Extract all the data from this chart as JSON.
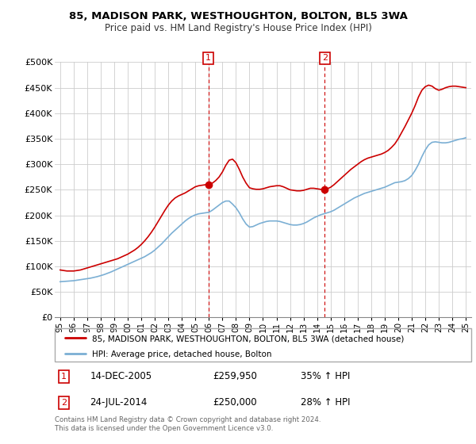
{
  "title": "85, MADISON PARK, WESTHOUGHTON, BOLTON, BL5 3WA",
  "subtitle": "Price paid vs. HM Land Registry's House Price Index (HPI)",
  "legend_line1": "85, MADISON PARK, WESTHOUGHTON, BOLTON, BL5 3WA (detached house)",
  "legend_line2": "HPI: Average price, detached house, Bolton",
  "annotation1_label": "1",
  "annotation1_date": "14-DEC-2005",
  "annotation1_price": "£259,950",
  "annotation1_hpi": "35% ↑ HPI",
  "annotation2_label": "2",
  "annotation2_date": "24-JUL-2014",
  "annotation2_price": "£250,000",
  "annotation2_hpi": "28% ↑ HPI",
  "footer": "Contains HM Land Registry data © Crown copyright and database right 2024.\nThis data is licensed under the Open Government Licence v3.0.",
  "red_color": "#cc0000",
  "blue_color": "#7bafd4",
  "marker1_x": 2005.96,
  "marker1_y": 259950,
  "marker2_x": 2014.56,
  "marker2_y": 250000,
  "ylim_min": 0,
  "ylim_max": 500000,
  "xlim_min": 1994.6,
  "xlim_max": 2025.4,
  "yticks": [
    0,
    50000,
    100000,
    150000,
    200000,
    250000,
    300000,
    350000,
    400000,
    450000,
    500000
  ],
  "ytick_labels": [
    "£0",
    "£50K",
    "£100K",
    "£150K",
    "£200K",
    "£250K",
    "£300K",
    "£350K",
    "£400K",
    "£450K",
    "£500K"
  ],
  "xticks": [
    1995,
    1996,
    1997,
    1998,
    1999,
    2000,
    2001,
    2002,
    2003,
    2004,
    2005,
    2006,
    2007,
    2008,
    2009,
    2010,
    2011,
    2012,
    2013,
    2014,
    2015,
    2016,
    2017,
    2018,
    2019,
    2020,
    2021,
    2022,
    2023,
    2024,
    2025
  ],
  "xtick_labels": [
    "95",
    "96",
    "97",
    "98",
    "99",
    "00",
    "01",
    "02",
    "03",
    "04",
    "05",
    "06",
    "07",
    "08",
    "09",
    "10",
    "11",
    "12",
    "13",
    "14",
    "15",
    "16",
    "17",
    "18",
    "19",
    "20",
    "21",
    "22",
    "23",
    "24",
    "25"
  ],
  "hpi_years": [
    1995.0,
    1995.25,
    1995.5,
    1995.75,
    1996.0,
    1996.25,
    1996.5,
    1996.75,
    1997.0,
    1997.25,
    1997.5,
    1997.75,
    1998.0,
    1998.25,
    1998.5,
    1998.75,
    1999.0,
    1999.25,
    1999.5,
    1999.75,
    2000.0,
    2000.25,
    2000.5,
    2000.75,
    2001.0,
    2001.25,
    2001.5,
    2001.75,
    2002.0,
    2002.25,
    2002.5,
    2002.75,
    2003.0,
    2003.25,
    2003.5,
    2003.75,
    2004.0,
    2004.25,
    2004.5,
    2004.75,
    2005.0,
    2005.25,
    2005.5,
    2005.75,
    2006.0,
    2006.25,
    2006.5,
    2006.75,
    2007.0,
    2007.25,
    2007.5,
    2007.75,
    2008.0,
    2008.25,
    2008.5,
    2008.75,
    2009.0,
    2009.25,
    2009.5,
    2009.75,
    2010.0,
    2010.25,
    2010.5,
    2010.75,
    2011.0,
    2011.25,
    2011.5,
    2011.75,
    2012.0,
    2012.25,
    2012.5,
    2012.75,
    2013.0,
    2013.25,
    2013.5,
    2013.75,
    2014.0,
    2014.25,
    2014.5,
    2014.75,
    2015.0,
    2015.25,
    2015.5,
    2015.75,
    2016.0,
    2016.25,
    2016.5,
    2016.75,
    2017.0,
    2017.25,
    2017.5,
    2017.75,
    2018.0,
    2018.25,
    2018.5,
    2018.75,
    2019.0,
    2019.25,
    2019.5,
    2019.75,
    2020.0,
    2020.25,
    2020.5,
    2020.75,
    2021.0,
    2021.25,
    2021.5,
    2021.75,
    2022.0,
    2022.25,
    2022.5,
    2022.75,
    2023.0,
    2023.25,
    2023.5,
    2023.75,
    2024.0,
    2024.25,
    2024.5,
    2024.75,
    2025.0
  ],
  "hpi_values": [
    70000,
    70500,
    71000,
    71500,
    72000,
    73000,
    74000,
    75000,
    76000,
    77000,
    78500,
    80000,
    82000,
    84000,
    86500,
    89000,
    92000,
    95000,
    98000,
    101000,
    104000,
    107000,
    110000,
    113000,
    116000,
    119000,
    123000,
    127000,
    132000,
    138000,
    144000,
    151000,
    158000,
    165000,
    171000,
    177000,
    183000,
    189000,
    194000,
    198000,
    201000,
    203000,
    204000,
    205000,
    206000,
    210000,
    215000,
    220000,
    225000,
    228000,
    228000,
    222000,
    215000,
    205000,
    193000,
    183000,
    177000,
    178000,
    181000,
    184000,
    186000,
    188000,
    189000,
    189000,
    189000,
    188000,
    186000,
    184000,
    182000,
    181000,
    181000,
    182000,
    184000,
    187000,
    191000,
    195000,
    198000,
    201000,
    203000,
    205000,
    207000,
    210000,
    214000,
    218000,
    222000,
    226000,
    230000,
    234000,
    237000,
    240000,
    243000,
    245000,
    247000,
    249000,
    251000,
    253000,
    255000,
    258000,
    261000,
    264000,
    265000,
    266000,
    268000,
    272000,
    278000,
    288000,
    300000,
    315000,
    328000,
    338000,
    343000,
    344000,
    343000,
    342000,
    342000,
    343000,
    345000,
    347000,
    349000,
    350000,
    352000
  ],
  "red_years": [
    1995.0,
    1995.25,
    1995.5,
    1995.75,
    1996.0,
    1996.25,
    1996.5,
    1996.75,
    1997.0,
    1997.25,
    1997.5,
    1997.75,
    1998.0,
    1998.25,
    1998.5,
    1998.75,
    1999.0,
    1999.25,
    1999.5,
    1999.75,
    2000.0,
    2000.25,
    2000.5,
    2000.75,
    2001.0,
    2001.25,
    2001.5,
    2001.75,
    2002.0,
    2002.25,
    2002.5,
    2002.75,
    2003.0,
    2003.25,
    2003.5,
    2003.75,
    2004.0,
    2004.25,
    2004.5,
    2004.75,
    2005.0,
    2005.25,
    2005.5,
    2005.75,
    2005.96,
    2006.25,
    2006.5,
    2006.75,
    2007.0,
    2007.25,
    2007.5,
    2007.75,
    2008.0,
    2008.25,
    2008.5,
    2008.75,
    2009.0,
    2009.25,
    2009.5,
    2009.75,
    2010.0,
    2010.25,
    2010.5,
    2010.75,
    2011.0,
    2011.25,
    2011.5,
    2011.75,
    2012.0,
    2012.25,
    2012.5,
    2012.75,
    2013.0,
    2013.25,
    2013.5,
    2013.75,
    2014.0,
    2014.25,
    2014.56,
    2014.75,
    2015.0,
    2015.25,
    2015.5,
    2015.75,
    2016.0,
    2016.25,
    2016.5,
    2016.75,
    2017.0,
    2017.25,
    2017.5,
    2017.75,
    2018.0,
    2018.25,
    2018.5,
    2018.75,
    2019.0,
    2019.25,
    2019.5,
    2019.75,
    2020.0,
    2020.25,
    2020.5,
    2020.75,
    2021.0,
    2021.25,
    2021.5,
    2021.75,
    2022.0,
    2022.25,
    2022.5,
    2022.75,
    2023.0,
    2023.25,
    2023.5,
    2023.75,
    2024.0,
    2024.25,
    2024.5,
    2024.75,
    2025.0
  ],
  "red_values": [
    93000,
    92000,
    91000,
    91000,
    91000,
    92000,
    93000,
    95000,
    97000,
    99000,
    101000,
    103000,
    105000,
    107000,
    109000,
    111000,
    113000,
    115000,
    118000,
    121000,
    124000,
    128000,
    132000,
    137000,
    143000,
    150000,
    158000,
    167000,
    177000,
    188000,
    199000,
    210000,
    220000,
    228000,
    234000,
    238000,
    241000,
    244000,
    248000,
    252000,
    256000,
    258000,
    259000,
    260000,
    259950,
    263000,
    268000,
    275000,
    285000,
    298000,
    308000,
    310000,
    303000,
    290000,
    275000,
    263000,
    254000,
    252000,
    251000,
    251000,
    252000,
    254000,
    256000,
    257000,
    258000,
    258000,
    256000,
    253000,
    250000,
    249000,
    248000,
    248000,
    249000,
    251000,
    253000,
    253000,
    252000,
    251000,
    250000,
    252000,
    255000,
    260000,
    266000,
    272000,
    278000,
    284000,
    290000,
    295000,
    300000,
    305000,
    309000,
    312000,
    314000,
    316000,
    318000,
    320000,
    323000,
    327000,
    333000,
    340000,
    350000,
    362000,
    374000,
    387000,
    400000,
    415000,
    432000,
    445000,
    452000,
    455000,
    453000,
    448000,
    445000,
    447000,
    450000,
    452000,
    453000,
    453000,
    452000,
    451000,
    450000
  ]
}
